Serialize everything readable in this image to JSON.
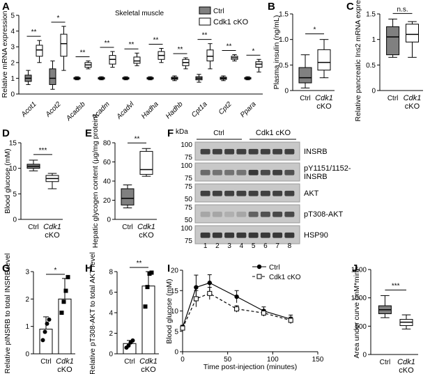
{
  "panel_letters": [
    "A",
    "B",
    "C",
    "D",
    "E",
    "F",
    "G",
    "H",
    "I",
    "J"
  ],
  "chart_data": [
    {
      "panel": "A",
      "type": "box",
      "title": "Skeletal muscle",
      "ylabel": "Relative mRNA expression",
      "ylim": [
        0,
        5
      ],
      "yticks": [
        "0",
        "1",
        "2",
        "3",
        "4",
        "5"
      ],
      "legend": [
        "Ctrl",
        "Cdk1 cKO"
      ],
      "series_colors": {
        "Ctrl": "#808080",
        "Cdk1 cKO": "#ffffff"
      },
      "categories": [
        "Acot1",
        "Acot2",
        "Acadsb",
        "Acadm",
        "Acadvl",
        "Hadha",
        "Hadhb",
        "Cpt1a",
        "Cpt2",
        "Ppara"
      ],
      "significance": [
        "**",
        "*",
        "**",
        "**",
        "**",
        "**",
        "**",
        "**",
        "**",
        "*"
      ],
      "series": [
        {
          "name": "Ctrl",
          "boxes": [
            {
              "min": 0.6,
              "q1": 0.8,
              "median": 1.0,
              "q3": 1.2,
              "max": 1.5
            },
            {
              "min": 0.3,
              "q1": 0.6,
              "median": 1.0,
              "q3": 1.6,
              "max": 2.1
            },
            {
              "min": 0.9,
              "q1": 0.95,
              "median": 1.0,
              "q3": 1.05,
              "max": 1.1
            },
            {
              "min": 0.9,
              "q1": 0.95,
              "median": 1.0,
              "q3": 1.05,
              "max": 1.1
            },
            {
              "min": 0.9,
              "q1": 0.95,
              "median": 1.0,
              "q3": 1.05,
              "max": 1.1
            },
            {
              "min": 0.9,
              "q1": 0.95,
              "median": 1.0,
              "q3": 1.05,
              "max": 1.1
            },
            {
              "min": 0.85,
              "q1": 0.93,
              "median": 1.0,
              "q3": 1.07,
              "max": 1.15
            },
            {
              "min": 0.75,
              "q1": 0.9,
              "median": 1.0,
              "q3": 1.1,
              "max": 1.25
            },
            {
              "min": 0.85,
              "q1": 0.93,
              "median": 1.0,
              "q3": 1.07,
              "max": 1.15
            },
            {
              "min": 0.9,
              "q1": 0.95,
              "median": 1.0,
              "q3": 1.05,
              "max": 1.1
            }
          ]
        },
        {
          "name": "Cdk1 cKO",
          "boxes": [
            {
              "min": 2.0,
              "q1": 2.4,
              "median": 2.8,
              "q3": 3.1,
              "max": 3.4
            },
            {
              "min": 1.5,
              "q1": 2.4,
              "median": 3.2,
              "q3": 3.8,
              "max": 4.3
            },
            {
              "min": 1.6,
              "q1": 1.7,
              "median": 1.85,
              "q3": 2.0,
              "max": 2.1
            },
            {
              "min": 1.7,
              "q1": 1.9,
              "median": 2.2,
              "q3": 2.45,
              "max": 2.7
            },
            {
              "min": 1.8,
              "q1": 1.95,
              "median": 2.1,
              "q3": 2.35,
              "max": 2.6
            },
            {
              "min": 2.0,
              "q1": 2.2,
              "median": 2.45,
              "q3": 2.7,
              "max": 2.9
            },
            {
              "min": 1.6,
              "q1": 1.8,
              "median": 2.0,
              "q3": 2.2,
              "max": 2.3
            },
            {
              "min": 1.6,
              "q1": 2.1,
              "median": 2.4,
              "q3": 2.8,
              "max": 3.2
            },
            {
              "min": 2.1,
              "q1": 2.2,
              "median": 2.3,
              "q3": 2.4,
              "max": 2.5
            },
            {
              "min": 1.4,
              "q1": 1.7,
              "median": 1.9,
              "q3": 2.05,
              "max": 2.2
            }
          ]
        }
      ]
    },
    {
      "panel": "B",
      "type": "box",
      "ylabel": "Plasma insulin (ng/mL)",
      "ylim": [
        0,
        1.5
      ],
      "yticks": [
        "0",
        "0.5",
        "1.0",
        "1.5"
      ],
      "categories": [
        "Ctrl",
        "Cdk1 cKO"
      ],
      "significance": [
        "*"
      ],
      "boxes": [
        {
          "min": 0.05,
          "q1": 0.15,
          "median": 0.25,
          "q3": 0.45,
          "max": 0.7
        },
        {
          "min": 0.25,
          "q1": 0.4,
          "median": 0.55,
          "q3": 0.8,
          "max": 1.0
        }
      ]
    },
    {
      "panel": "C",
      "type": "box",
      "ylabel": "Relative pancreatic Ins2 mRNA expression",
      "ylim": [
        0,
        1.5
      ],
      "yticks": [
        "0",
        "0.5",
        "1",
        "1.5"
      ],
      "categories": [
        "Ctrl",
        "Cdk1 cKO"
      ],
      "significance": [
        "n.s."
      ],
      "boxes": [
        {
          "min": 0.65,
          "q1": 0.7,
          "median": 1.05,
          "q3": 1.25,
          "max": 1.4
        },
        {
          "min": 0.65,
          "q1": 0.95,
          "median": 1.1,
          "q3": 1.3,
          "max": 1.35
        }
      ]
    },
    {
      "panel": "D",
      "type": "box",
      "ylabel": "Blood glucose (mM)",
      "ylim": [
        0,
        15
      ],
      "yticks": [
        "0",
        "5",
        "10",
        "15"
      ],
      "categories": [
        "Ctrl",
        "Cdk1 cKO"
      ],
      "significance": [
        "***"
      ],
      "boxes": [
        {
          "min": 9.5,
          "q1": 10.0,
          "median": 10.4,
          "q3": 10.8,
          "max": 11.6
        },
        {
          "min": 6.0,
          "q1": 7.4,
          "median": 8.0,
          "q3": 8.6,
          "max": 9.0
        }
      ]
    },
    {
      "panel": "E",
      "type": "box",
      "ylabel": "Hepatic glycogen content (μg/mg protein)",
      "ylim": [
        0,
        80
      ],
      "yticks": [
        "0",
        "20",
        "40",
        "60",
        "80"
      ],
      "categories": [
        "Ctrl",
        "Cdk1 cKO"
      ],
      "significance": [
        "**"
      ],
      "boxes": [
        {
          "min": 12,
          "q1": 15,
          "median": 22,
          "q3": 32,
          "max": 36
        },
        {
          "min": 45,
          "q1": 47,
          "median": 52,
          "q3": 71,
          "max": 74
        }
      ]
    },
    {
      "panel": "F",
      "type": "western_blot",
      "kda_label": "kDa",
      "groups": [
        "Ctrl",
        "Cdk1 cKO"
      ],
      "lanes": [
        "1",
        "2",
        "3",
        "4",
        "5",
        "6",
        "7",
        "8"
      ],
      "blots": [
        {
          "name": "INSRB",
          "markers": [
            "100",
            "75"
          ],
          "intensity": [
            0.8,
            0.8,
            0.8,
            0.8,
            0.8,
            0.8,
            0.8,
            0.8
          ]
        },
        {
          "name": "pY1151/1152-\nINSRB",
          "markers": [
            "100",
            "75"
          ],
          "intensity": [
            0.55,
            0.5,
            0.5,
            0.5,
            0.85,
            0.75,
            0.8,
            0.7
          ]
        },
        {
          "name": "AKT",
          "markers": [
            "75",
            "50"
          ],
          "intensity": [
            0.8,
            0.8,
            0.8,
            0.8,
            0.8,
            0.8,
            0.8,
            0.8
          ]
        },
        {
          "name": "pT308-AKT",
          "markers": [
            "75",
            "50"
          ],
          "intensity": [
            0.2,
            0.2,
            0.15,
            0.2,
            0.6,
            0.7,
            0.75,
            0.75
          ]
        },
        {
          "name": "HSP90",
          "markers": [
            "100",
            "75"
          ],
          "intensity": [
            0.85,
            0.85,
            0.85,
            0.85,
            0.85,
            0.85,
            0.85,
            0.85
          ]
        }
      ]
    },
    {
      "panel": "G",
      "type": "bar",
      "ylabel": "Relative pINSRB to total INSRB level",
      "ylim": [
        0,
        3
      ],
      "yticks": [
        "0",
        "1",
        "2",
        "3"
      ],
      "categories": [
        "Ctrl",
        "Cdk1 cKO"
      ],
      "values": [
        0.9,
        2.0
      ],
      "errors": [
        0.45,
        0.75
      ],
      "points": [
        [
          0.5,
          0.8,
          1.1,
          1.25
        ],
        [
          1.5,
          1.9,
          2.3,
          2.8
        ]
      ],
      "significance": [
        "*"
      ]
    },
    {
      "panel": "H",
      "type": "bar",
      "ylabel": "Relative pT308-AKT to total AKT level",
      "ylim": [
        0,
        8
      ],
      "yticks": [
        "0",
        "2",
        "4",
        "6",
        "8"
      ],
      "categories": [
        "Ctrl",
        "Cdk1 cKO"
      ],
      "values": [
        1.0,
        6.6
      ],
      "errors": [
        0.3,
        1.4
      ],
      "points": [
        [
          0.6,
          0.8,
          1.1,
          1.3
        ],
        [
          4.6,
          6.5,
          7.8,
          7.9
        ]
      ],
      "significance": [
        "**"
      ]
    },
    {
      "panel": "I",
      "type": "line",
      "xlabel": "Time post-injection (minutes)",
      "ylabel": "Blood glucose (mM)",
      "xlim": [
        0,
        150
      ],
      "ylim": [
        0,
        20
      ],
      "xticks": [
        "0",
        "50",
        "100",
        "150"
      ],
      "yticks": [
        "0",
        "5",
        "10",
        "15",
        "20"
      ],
      "legend": [
        "Ctrl",
        "Cdk1 cKO"
      ],
      "x": [
        0,
        15,
        30,
        60,
        90,
        120
      ],
      "series": [
        {
          "name": "Ctrl",
          "values": [
            6.0,
            15.8,
            16.9,
            13.5,
            10.0,
            8.0
          ],
          "errors": [
            0.5,
            3.0,
            2.0,
            1.5,
            1.0,
            1.0
          ]
        },
        {
          "name": "Cdk1 cKO",
          "values": [
            5.8,
            13.0,
            14.3,
            10.5,
            9.5,
            7.7
          ],
          "errors": [
            0.5,
            2.0,
            1.5,
            0.8,
            0.8,
            0.8
          ]
        }
      ]
    },
    {
      "panel": "J",
      "type": "box",
      "ylabel": "Area under curve (mM*min)",
      "ylim": [
        0,
        1500
      ],
      "yticks": [
        "0",
        "500",
        "1000",
        "1500"
      ],
      "categories": [
        "Ctrl",
        "Cdk1 cKO"
      ],
      "significance": [
        "***"
      ],
      "boxes": [
        {
          "min": 650,
          "q1": 720,
          "median": 790,
          "q3": 860,
          "max": 1040
        },
        {
          "min": 450,
          "q1": 510,
          "median": 570,
          "q3": 620,
          "max": 700
        }
      ]
    }
  ]
}
